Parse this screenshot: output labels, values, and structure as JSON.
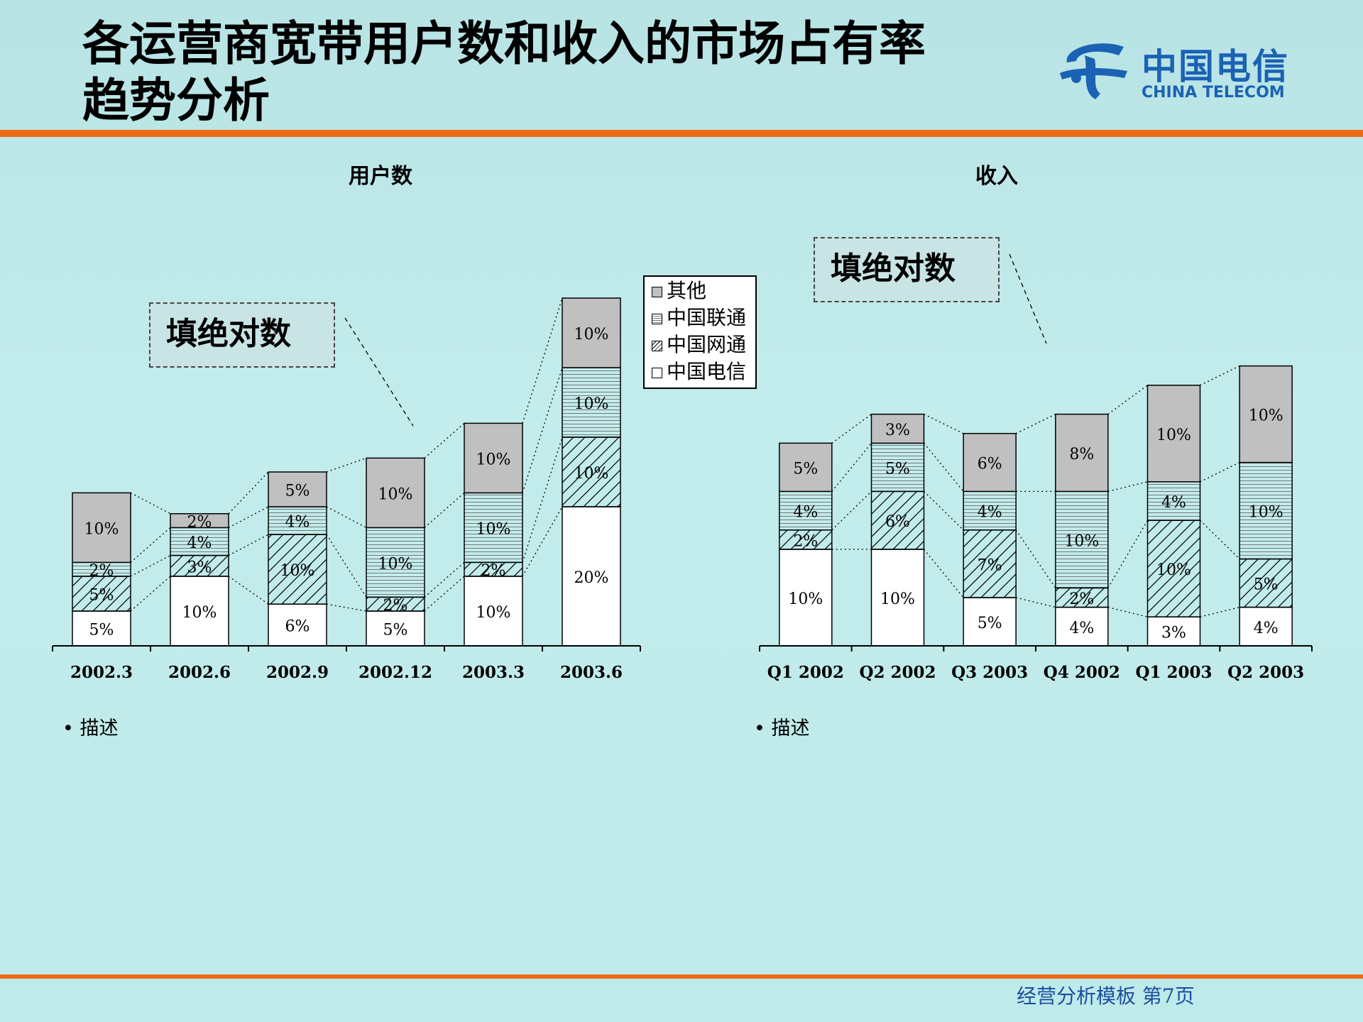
{
  "title": [
    "各运营商宽带用户数和收入的市场占有率",
    "趋势分析"
  ],
  "logo": {
    "cn": "中国电信",
    "en": "CHINA TELECOM"
  },
  "legend": [
    "其他",
    "中国联通",
    "中国网通",
    "中国电信"
  ],
  "callouts": [
    "填绝对数",
    "填绝对数"
  ],
  "bullets": [
    "描述",
    "描述"
  ],
  "footer": "经营分析模板  第7页",
  "colors": {
    "accent_rule": "#ee6a17",
    "footer_text": "#1a4fa0",
    "other_fill": "#c0c0c0"
  },
  "chart_data": [
    {
      "type": "bar",
      "stacked": true,
      "title": "用户数",
      "categories": [
        "2002.3",
        "2002.6",
        "2002.9",
        "2002.12",
        "2003.3",
        "2003.6"
      ],
      "series": [
        {
          "name": "中国电信",
          "labels": [
            "5%",
            "10%",
            "6%",
            "5%",
            "10%",
            "20%"
          ],
          "values": [
            5,
            10,
            6,
            5,
            10,
            20
          ]
        },
        {
          "name": "中国网通",
          "labels": [
            "5%",
            "3%",
            "10%",
            "2%",
            "2%",
            "10%"
          ],
          "values": [
            5,
            3,
            10,
            2,
            2,
            10
          ]
        },
        {
          "name": "中国联通",
          "labels": [
            "2%",
            "4%",
            "4%",
            "10%",
            "10%",
            "10%"
          ],
          "values": [
            2,
            4,
            4,
            10,
            10,
            10
          ]
        },
        {
          "name": "其他",
          "labels": [
            "10%",
            "2%",
            "5%",
            "10%",
            "10%",
            "10%"
          ],
          "values": [
            10,
            2,
            5,
            10,
            10,
            10
          ]
        }
      ]
    },
    {
      "type": "bar",
      "stacked": true,
      "title": "收入",
      "categories": [
        "Q1 2002",
        "Q2 2002",
        "Q3 2003",
        "Q4 2002",
        "Q1 2003",
        "Q2 2003"
      ],
      "series": [
        {
          "name": "中国电信",
          "labels": [
            "10%",
            "10%",
            "5%",
            "4%",
            "3%",
            "4%"
          ],
          "values": [
            10,
            10,
            5,
            4,
            3,
            4
          ]
        },
        {
          "name": "中国网通",
          "labels": [
            "2%",
            "6%",
            "7%",
            "2%",
            "10%",
            "5%"
          ],
          "values": [
            2,
            6,
            7,
            2,
            10,
            5
          ]
        },
        {
          "name": "中国联通",
          "labels": [
            "4%",
            "5%",
            "4%",
            "10%",
            "4%",
            "10%"
          ],
          "values": [
            4,
            5,
            4,
            10,
            4,
            10
          ]
        },
        {
          "name": "其他",
          "labels": [
            "5%",
            "3%",
            "6%",
            "8%",
            "10%",
            "10%"
          ],
          "values": [
            5,
            3,
            6,
            8,
            10,
            10
          ]
        }
      ]
    }
  ]
}
